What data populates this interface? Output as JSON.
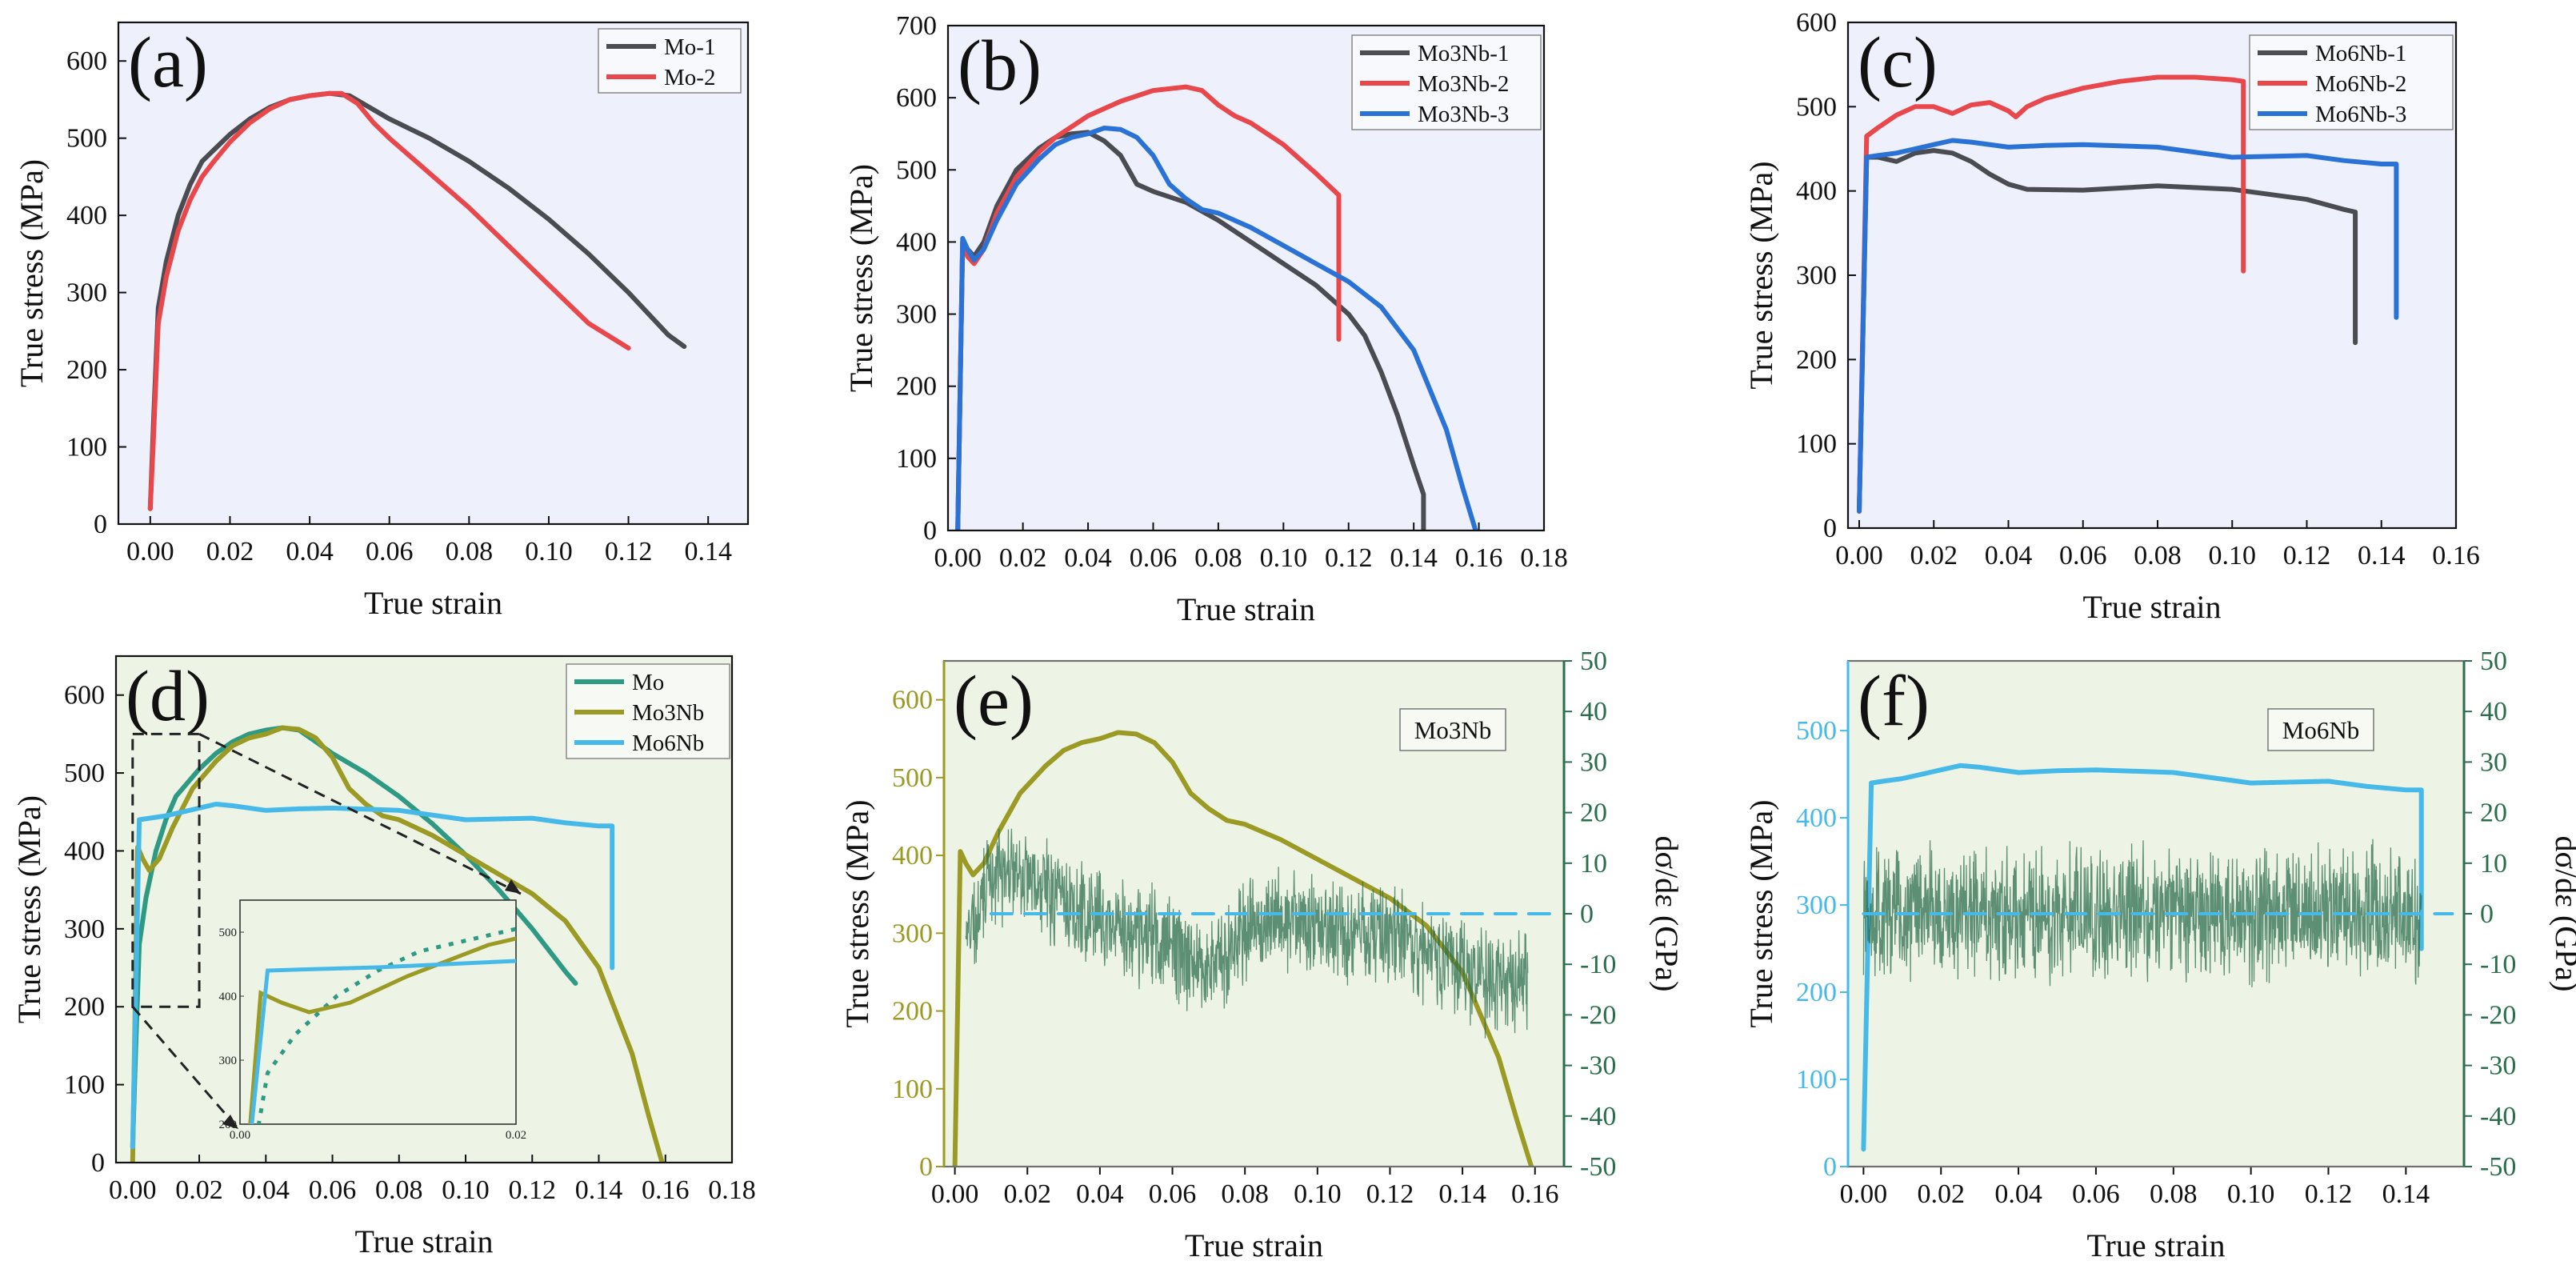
{
  "figure": {
    "colors": {
      "gray": "#4a4c52",
      "red": "#e8474b",
      "blue": "#2a72d6",
      "teal": "#2f9a84",
      "olive": "#9a9a24",
      "cyan": "#47b9e8",
      "darkgreen": "#2b6e4e",
      "frameBg": "#eef1fb",
      "frameBg2": "#edf4e6"
    }
  },
  "chart_data": [
    {
      "id": "a",
      "type": "line",
      "panel_label": "(a)",
      "xlabel": "True strain",
      "ylabel": "True stress (MPa)",
      "xlim": [
        -0.008,
        0.15
      ],
      "ylim": [
        0,
        650
      ],
      "xticks": [
        "0.00",
        "0.02",
        "0.04",
        "0.06",
        "0.08",
        "0.10",
        "0.12",
        "0.14"
      ],
      "yticks": [
        "0",
        "100",
        "200",
        "300",
        "400",
        "500",
        "600"
      ],
      "legend": "top-right",
      "series": [
        {
          "name": "Mo-1",
          "color": "gray",
          "x": [
            0,
            0.0008,
            0.002,
            0.004,
            0.007,
            0.01,
            0.013,
            0.016,
            0.02,
            0.025,
            0.03,
            0.035,
            0.04,
            0.045,
            0.05,
            0.055,
            0.06,
            0.07,
            0.08,
            0.09,
            0.1,
            0.11,
            0.12,
            0.13,
            0.134
          ],
          "y": [
            20,
            130,
            280,
            340,
            400,
            440,
            470,
            485,
            505,
            525,
            540,
            550,
            555,
            558,
            555,
            540,
            525,
            500,
            470,
            435,
            395,
            350,
            300,
            245,
            230
          ]
        },
        {
          "name": "Mo-2",
          "color": "red",
          "x": [
            0,
            0.0008,
            0.002,
            0.004,
            0.007,
            0.01,
            0.013,
            0.016,
            0.02,
            0.025,
            0.03,
            0.035,
            0.04,
            0.045,
            0.048,
            0.052,
            0.056,
            0.06,
            0.07,
            0.08,
            0.09,
            0.1,
            0.11,
            0.12
          ],
          "y": [
            20,
            110,
            260,
            320,
            380,
            420,
            450,
            470,
            495,
            520,
            538,
            550,
            555,
            558,
            558,
            545,
            520,
            500,
            455,
            410,
            360,
            310,
            260,
            228
          ]
        }
      ]
    },
    {
      "id": "b",
      "type": "line",
      "panel_label": "(b)",
      "xlabel": "True strain",
      "ylabel": "True stress (MPa)",
      "xlim": [
        -0.003,
        0.18
      ],
      "ylim": [
        0,
        700
      ],
      "xticks": [
        "0.00",
        "0.02",
        "0.04",
        "0.06",
        "0.08",
        "0.10",
        "0.12",
        "0.14",
        "0.16",
        "0.18"
      ],
      "yticks": [
        "0",
        "100",
        "200",
        "300",
        "400",
        "500",
        "600",
        "700"
      ],
      "legend": "top-right",
      "series": [
        {
          "name": "Mo3Nb-1",
          "color": "gray",
          "x": [
            0,
            0.0015,
            0.003,
            0.005,
            0.008,
            0.012,
            0.018,
            0.025,
            0.03,
            0.035,
            0.04,
            0.045,
            0.05,
            0.055,
            0.06,
            0.07,
            0.08,
            0.09,
            0.1,
            0.11,
            0.12,
            0.125,
            0.13,
            0.135,
            0.14,
            0.143,
            0.143
          ],
          "y": [
            0,
            400,
            390,
            380,
            400,
            450,
            500,
            530,
            545,
            550,
            552,
            540,
            520,
            480,
            470,
            455,
            430,
            400,
            370,
            340,
            300,
            270,
            220,
            160,
            90,
            50,
            0
          ]
        },
        {
          "name": "Mo3Nb-2",
          "color": "red",
          "x": [
            0,
            0.0015,
            0.003,
            0.005,
            0.008,
            0.012,
            0.018,
            0.025,
            0.03,
            0.035,
            0.04,
            0.05,
            0.06,
            0.07,
            0.075,
            0.08,
            0.085,
            0.09,
            0.1,
            0.11,
            0.117,
            0.117
          ],
          "y": [
            0,
            400,
            380,
            370,
            390,
            440,
            490,
            525,
            545,
            560,
            575,
            595,
            610,
            615,
            610,
            590,
            575,
            565,
            535,
            495,
            465,
            265
          ]
        },
        {
          "name": "Mo3Nb-3",
          "color": "blue",
          "x": [
            0,
            0.0015,
            0.003,
            0.005,
            0.008,
            0.012,
            0.018,
            0.025,
            0.03,
            0.035,
            0.04,
            0.045,
            0.05,
            0.055,
            0.06,
            0.065,
            0.07,
            0.075,
            0.08,
            0.09,
            0.1,
            0.11,
            0.12,
            0.13,
            0.14,
            0.15,
            0.155,
            0.159
          ],
          "y": [
            0,
            405,
            390,
            375,
            390,
            430,
            480,
            515,
            535,
            545,
            550,
            558,
            556,
            545,
            520,
            480,
            460,
            445,
            440,
            420,
            395,
            370,
            345,
            310,
            250,
            140,
            60,
            0
          ]
        }
      ]
    },
    {
      "id": "c",
      "type": "line",
      "panel_label": "(c)",
      "xlabel": "True strain",
      "ylabel": "True stress (MPa)",
      "xlim": [
        -0.003,
        0.16
      ],
      "ylim": [
        0,
        600
      ],
      "xticks": [
        "0.00",
        "0.02",
        "0.04",
        "0.06",
        "0.08",
        "0.10",
        "0.12",
        "0.14",
        "0.16"
      ],
      "yticks": [
        "0",
        "100",
        "200",
        "300",
        "400",
        "500",
        "600"
      ],
      "legend": "top-right",
      "series": [
        {
          "name": "Mo6Nb-1",
          "color": "gray",
          "x": [
            0,
            0.002,
            0.005,
            0.01,
            0.015,
            0.02,
            0.025,
            0.03,
            0.035,
            0.04,
            0.045,
            0.06,
            0.08,
            0.1,
            0.12,
            0.13,
            0.133,
            0.133
          ],
          "y": [
            20,
            440,
            440,
            435,
            445,
            448,
            445,
            435,
            420,
            408,
            402,
            401,
            406,
            402,
            390,
            378,
            375,
            220
          ]
        },
        {
          "name": "Mo6Nb-2",
          "color": "red",
          "x": [
            0,
            0.002,
            0.005,
            0.01,
            0.015,
            0.02,
            0.025,
            0.03,
            0.035,
            0.04,
            0.042,
            0.045,
            0.05,
            0.06,
            0.07,
            0.08,
            0.09,
            0.1,
            0.103,
            0.103
          ],
          "y": [
            20,
            465,
            475,
            490,
            500,
            500,
            492,
            502,
            505,
            495,
            488,
            500,
            510,
            522,
            530,
            535,
            535,
            532,
            530,
            305
          ]
        },
        {
          "name": "Mo6Nb-3",
          "color": "blue",
          "x": [
            0,
            0.002,
            0.005,
            0.01,
            0.015,
            0.02,
            0.025,
            0.03,
            0.04,
            0.05,
            0.06,
            0.08,
            0.1,
            0.12,
            0.13,
            0.14,
            0.144,
            0.144
          ],
          "y": [
            20,
            440,
            442,
            445,
            450,
            455,
            460,
            458,
            452,
            454,
            455,
            452,
            440,
            442,
            436,
            432,
            432,
            250
          ]
        }
      ]
    },
    {
      "id": "d",
      "type": "line",
      "panel_label": "(d)",
      "xlabel": "True strain",
      "ylabel": "True stress (MPa)",
      "xlim": [
        -0.005,
        0.18
      ],
      "ylim": [
        0,
        650
      ],
      "xticks": [
        "0.00",
        "0.02",
        "0.04",
        "0.06",
        "0.08",
        "0.10",
        "0.12",
        "0.14",
        "0.16",
        "0.18"
      ],
      "yticks": [
        "0",
        "100",
        "200",
        "300",
        "400",
        "500",
        "600"
      ],
      "legend": "top-right",
      "series": [
        {
          "name": "Mo",
          "color": "teal",
          "x": [
            0,
            0.0008,
            0.002,
            0.004,
            0.007,
            0.01,
            0.013,
            0.016,
            0.02,
            0.025,
            0.03,
            0.035,
            0.04,
            0.045,
            0.05,
            0.055,
            0.06,
            0.07,
            0.08,
            0.09,
            0.1,
            0.11,
            0.12,
            0.13,
            0.133
          ],
          "y": [
            20,
            130,
            280,
            340,
            400,
            440,
            470,
            485,
            505,
            525,
            540,
            550,
            555,
            558,
            555,
            540,
            525,
            500,
            470,
            435,
            395,
            350,
            300,
            245,
            230
          ]
        },
        {
          "name": "Mo3Nb",
          "color": "olive",
          "x": [
            0,
            0.0015,
            0.003,
            0.005,
            0.008,
            0.012,
            0.018,
            0.025,
            0.03,
            0.035,
            0.04,
            0.045,
            0.05,
            0.055,
            0.06,
            0.065,
            0.07,
            0.075,
            0.08,
            0.09,
            0.1,
            0.11,
            0.12,
            0.13,
            0.14,
            0.15,
            0.155,
            0.159
          ],
          "y": [
            0,
            405,
            390,
            375,
            390,
            430,
            480,
            515,
            535,
            545,
            550,
            558,
            556,
            545,
            520,
            480,
            460,
            445,
            440,
            420,
            395,
            370,
            345,
            310,
            250,
            140,
            60,
            0
          ]
        },
        {
          "name": "Mo6Nb",
          "color": "cyan",
          "x": [
            0,
            0.002,
            0.005,
            0.01,
            0.015,
            0.02,
            0.025,
            0.03,
            0.04,
            0.05,
            0.06,
            0.08,
            0.1,
            0.12,
            0.13,
            0.14,
            0.144,
            0.144
          ],
          "y": [
            20,
            440,
            442,
            445,
            450,
            455,
            460,
            458,
            452,
            454,
            455,
            452,
            440,
            442,
            436,
            432,
            432,
            250
          ]
        }
      ],
      "inset": {
        "source_region": {
          "x": [
            0,
            0.02
          ],
          "y": [
            200,
            550
          ]
        },
        "xlim": [
          0,
          0.02
        ],
        "ylim": [
          200,
          550
        ],
        "xticks": [
          "0.00",
          "0.02"
        ],
        "yticks": [
          "200",
          "300",
          "400",
          "500"
        ]
      }
    },
    {
      "id": "e",
      "type": "line",
      "panel_label": "(e)",
      "annotation": "Mo3Nb",
      "xlabel": "True strain",
      "ylabel": "True stress (MPa)",
      "y2label": "dσ/dε (GPa)",
      "xlim": [
        -0.003,
        0.168
      ],
      "ylim": [
        0,
        650
      ],
      "y2lim": [
        -50,
        50
      ],
      "xticks": [
        "0.00",
        "0.02",
        "0.04",
        "0.06",
        "0.08",
        "0.10",
        "0.12",
        "0.14",
        "0.16"
      ],
      "yticks": [
        "0",
        "100",
        "200",
        "300",
        "400",
        "500",
        "600"
      ],
      "y2ticks": [
        "-50",
        "-40",
        "-30",
        "-20",
        "-10",
        "0",
        "10",
        "20",
        "30",
        "40",
        "50"
      ],
      "series": [
        {
          "name": "Mo3Nb",
          "color": "olive",
          "x": [
            0,
            0.0015,
            0.003,
            0.005,
            0.008,
            0.012,
            0.018,
            0.025,
            0.03,
            0.035,
            0.04,
            0.045,
            0.05,
            0.055,
            0.06,
            0.065,
            0.07,
            0.075,
            0.08,
            0.09,
            0.1,
            0.11,
            0.12,
            0.13,
            0.14,
            0.15,
            0.155,
            0.159
          ],
          "y": [
            0,
            405,
            390,
            375,
            390,
            430,
            480,
            515,
            535,
            545,
            550,
            558,
            556,
            545,
            520,
            480,
            460,
            445,
            440,
            420,
            395,
            370,
            345,
            310,
            250,
            140,
            60,
            0
          ]
        },
        {
          "name": "dσ/dε",
          "axis": "right",
          "color": "darkgreen",
          "x": [
            0.003,
            0.01,
            0.02,
            0.03,
            0.04,
            0.05,
            0.06,
            0.07,
            0.08,
            0.09,
            0.1,
            0.11,
            0.12,
            0.13,
            0.14,
            0.15,
            0.158
          ],
          "y": [
            -5,
            8,
            6,
            2,
            -2,
            -4,
            -6,
            -12,
            -3,
            -1,
            -3,
            -4,
            -4,
            -8,
            -11,
            -14,
            -13
          ]
        },
        {
          "name": "zero-line",
          "axis": "right",
          "color": "cyan",
          "x": [
            0.01,
            0.165
          ],
          "y": [
            0,
            0
          ]
        }
      ]
    },
    {
      "id": "f",
      "type": "line",
      "panel_label": "(f)",
      "annotation": "Mo6Nb",
      "xlabel": "True strain",
      "ylabel": "True stress (MPa)",
      "y2label": "dσ/dε (GPa)",
      "xlim": [
        -0.004,
        0.155
      ],
      "ylim": [
        0,
        580
      ],
      "y2lim": [
        -50,
        50
      ],
      "xticks": [
        "0.00",
        "0.02",
        "0.04",
        "0.06",
        "0.08",
        "0.10",
        "0.12",
        "0.14"
      ],
      "yticks": [
        "0",
        "100",
        "200",
        "300",
        "400",
        "500"
      ],
      "y2ticks": [
        "-50",
        "-40",
        "-30",
        "-20",
        "-10",
        "0",
        "10",
        "20",
        "30",
        "40",
        "50"
      ],
      "series": [
        {
          "name": "Mo6Nb",
          "color": "cyan",
          "x": [
            0,
            0.002,
            0.005,
            0.01,
            0.015,
            0.02,
            0.025,
            0.03,
            0.04,
            0.05,
            0.06,
            0.08,
            0.1,
            0.12,
            0.13,
            0.14,
            0.144,
            0.144
          ],
          "y": [
            20,
            440,
            442,
            445,
            450,
            455,
            460,
            458,
            452,
            454,
            455,
            452,
            440,
            442,
            436,
            432,
            432,
            250
          ]
        },
        {
          "name": "dσ/dε",
          "axis": "right",
          "color": "darkgreen",
          "x": [
            0.0,
            0.02,
            0.04,
            0.06,
            0.08,
            0.1,
            0.12,
            0.14,
            0.144
          ],
          "y": [
            0,
            0,
            0,
            0,
            0,
            0,
            0,
            0,
            0
          ]
        },
        {
          "name": "zero-line",
          "axis": "right",
          "color": "cyan",
          "x": [
            0.0,
            0.152
          ],
          "y": [
            0,
            0
          ]
        }
      ]
    }
  ]
}
